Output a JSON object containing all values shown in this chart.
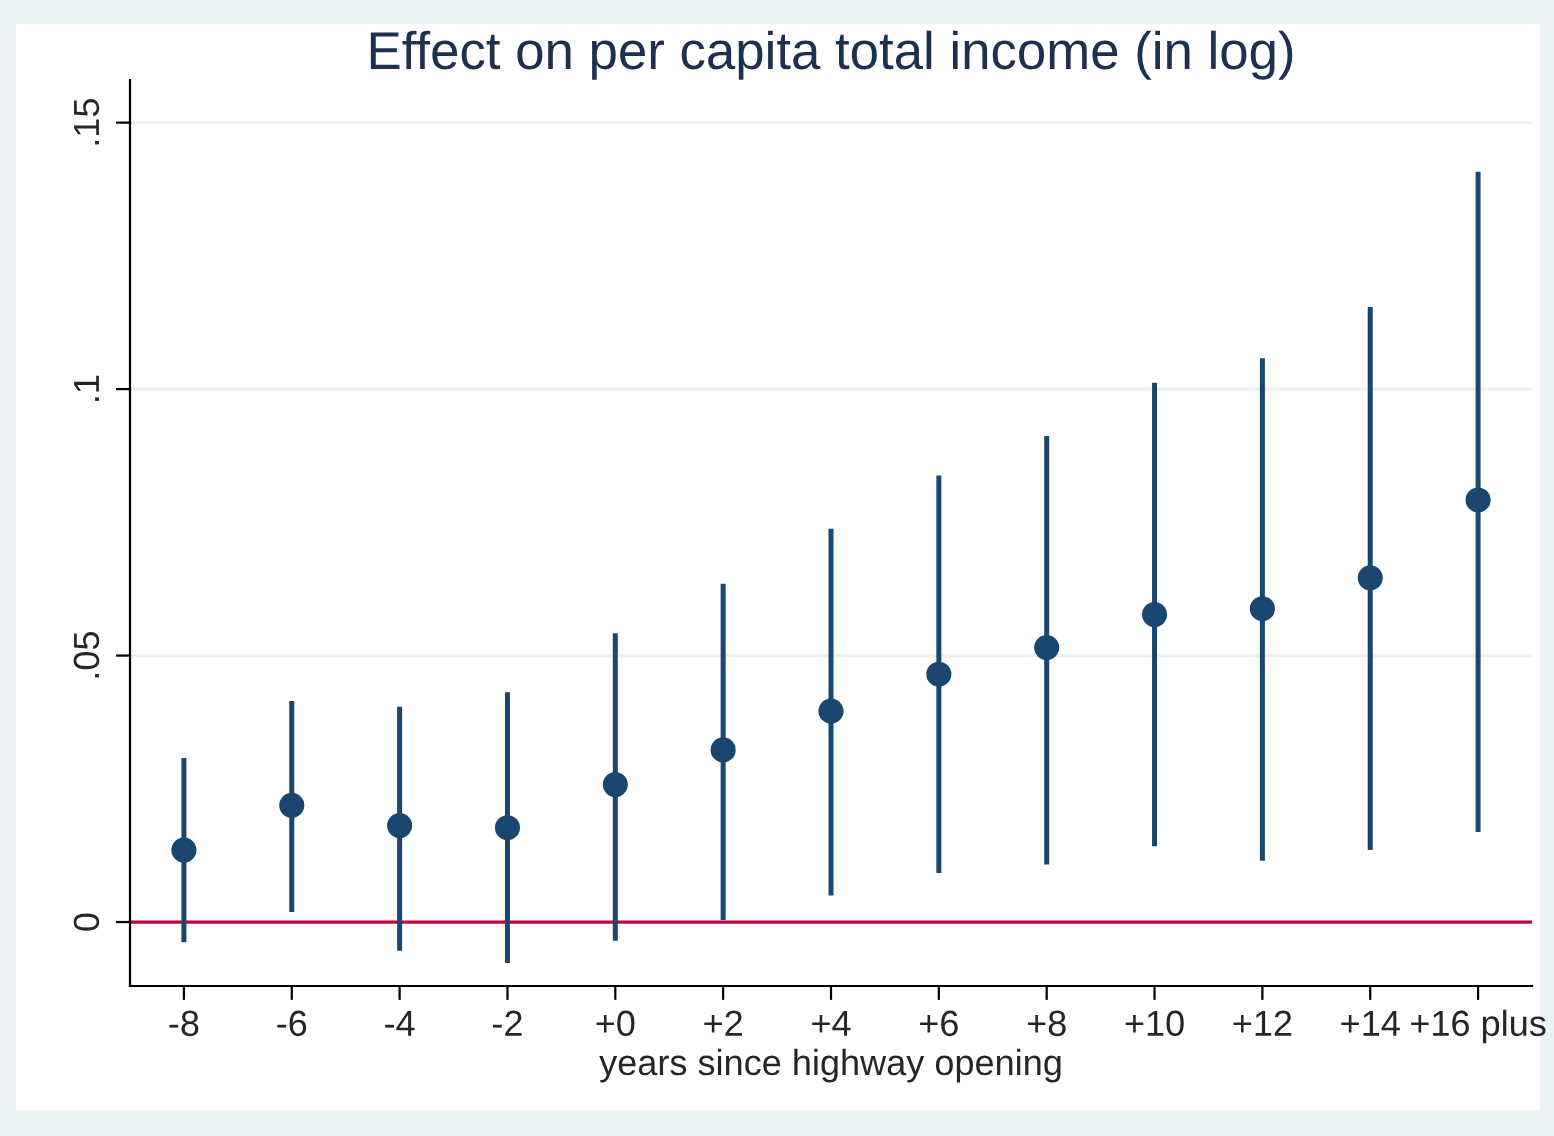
{
  "chart_data": {
    "type": "scatter",
    "title": "Effect on per capita total income (in log)",
    "xlabel": "years since highway opening",
    "categories": [
      "-8",
      "-6",
      "-4",
      "-2",
      "+0",
      "+2",
      "+4",
      "+6",
      "+8",
      "+10",
      "+12",
      "+14",
      "+16 plus"
    ],
    "series": [
      {
        "color": "#1a476f",
        "values": [
          0.0135,
          0.0219,
          0.0181,
          0.0177,
          0.0258,
          0.0323,
          0.0396,
          0.0465,
          0.0515,
          0.0577,
          0.0588,
          0.0646,
          0.0792
        ],
        "errors": [
          [
            -0.0038,
            0.0308
          ],
          [
            0.0019,
            0.0415
          ],
          [
            -0.0054,
            0.0404
          ],
          [
            -0.0077,
            0.0431
          ],
          [
            -0.0035,
            0.0542
          ],
          [
            0.0004,
            0.0635
          ],
          [
            0.005,
            0.0738
          ],
          [
            0.0092,
            0.0838
          ],
          [
            0.0108,
            0.0912
          ],
          [
            0.0142,
            0.1012
          ],
          [
            0.0115,
            0.1058
          ],
          [
            0.0135,
            0.1154
          ],
          [
            0.0169,
            0.1408
          ]
        ]
      }
    ],
    "ylim": [
      -0.012,
      0.158
    ],
    "yticks": [
      {
        "value": 0,
        "label": "0"
      },
      {
        "value": 0.05,
        "label": ".05"
      },
      {
        "value": 0.1,
        "label": ".1"
      },
      {
        "value": 0.15,
        "label": ".15"
      }
    ],
    "ref_lines": [
      {
        "axis": "y",
        "value": 0,
        "color": "#c10534"
      }
    ],
    "grid": "y",
    "marker": "circle",
    "legend": false
  }
}
